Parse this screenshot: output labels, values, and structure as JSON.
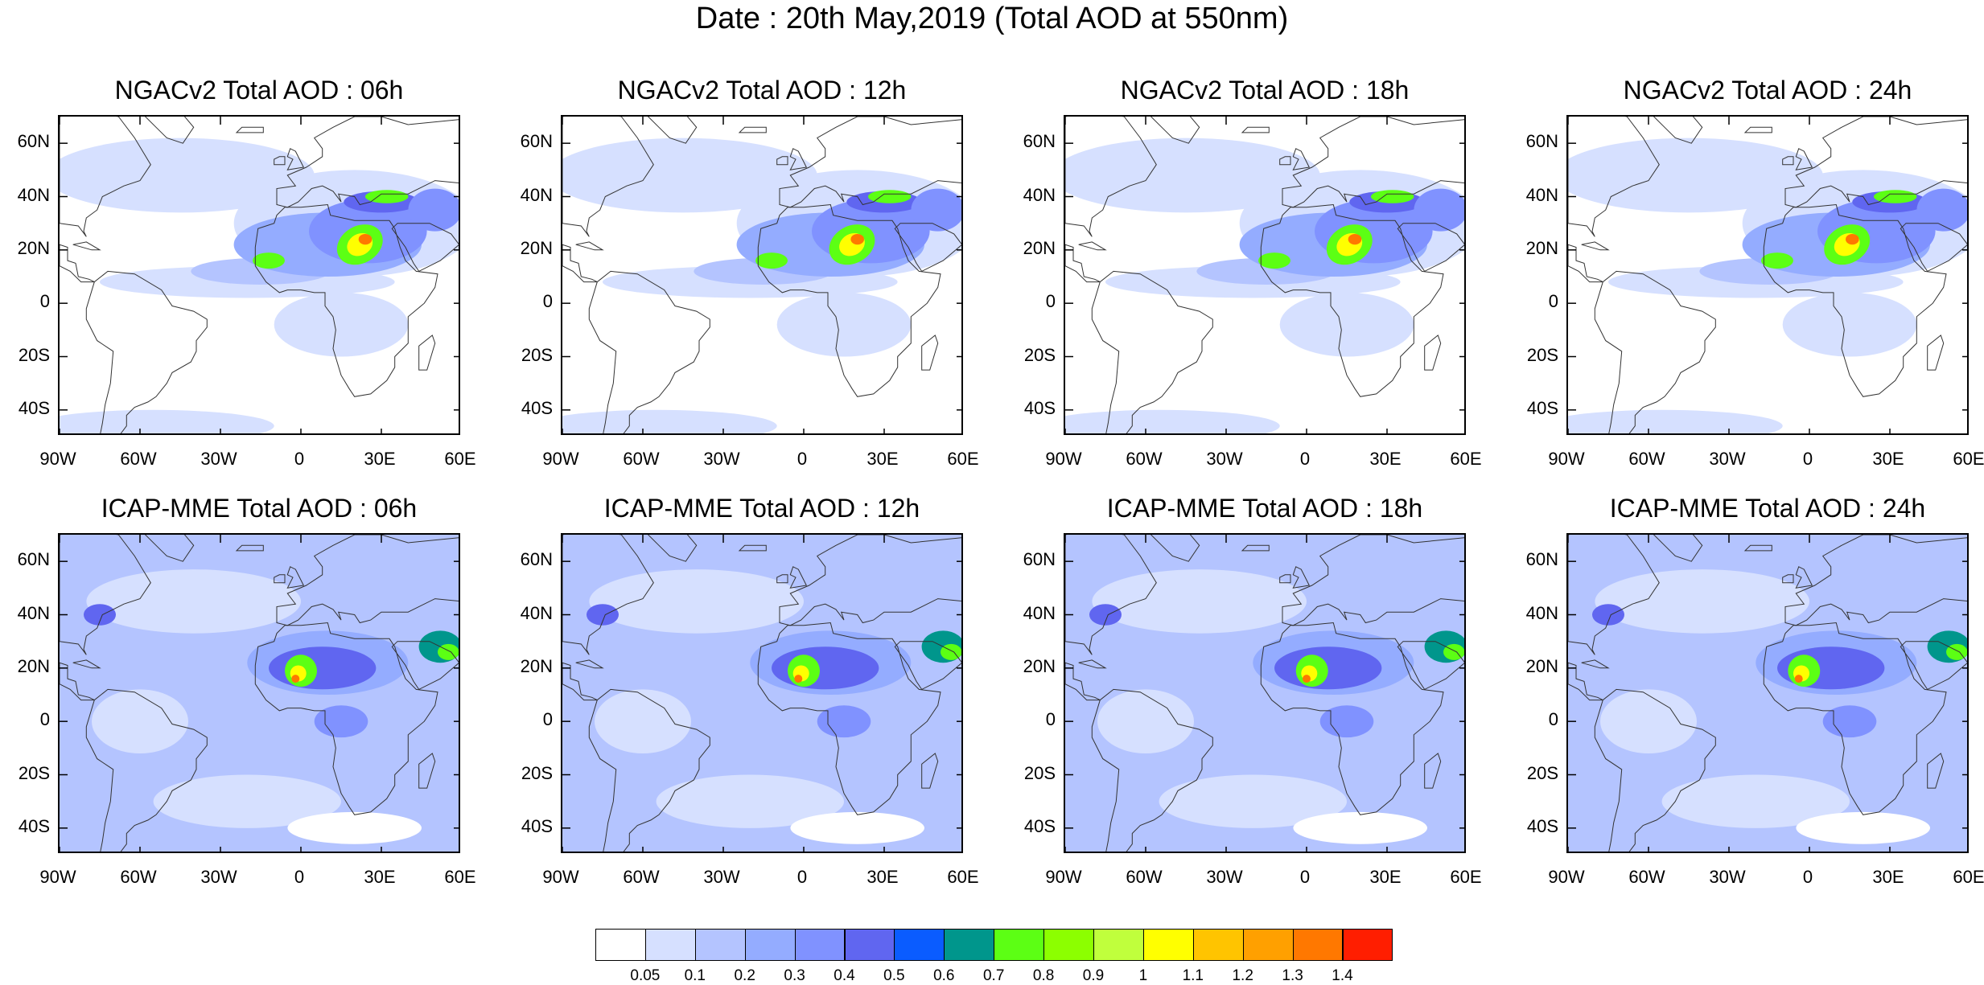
{
  "title": "Date : 20th May,2019 (Total AOD at 550nm)",
  "panels": [
    {
      "id": "ngac-06",
      "title": "NGACv2 Total AOD : 06h",
      "model": "NGACv2",
      "hour": "06h",
      "row": 0,
      "col": 0
    },
    {
      "id": "ngac-12",
      "title": "NGACv2 Total AOD : 12h",
      "model": "NGACv2",
      "hour": "12h",
      "row": 0,
      "col": 1
    },
    {
      "id": "ngac-18",
      "title": "NGACv2 Total AOD : 18h",
      "model": "NGACv2",
      "hour": "18h",
      "row": 0,
      "col": 2
    },
    {
      "id": "ngac-24",
      "title": "NGACv2 Total AOD : 24h",
      "model": "NGACv2",
      "hour": "24h",
      "row": 0,
      "col": 3
    },
    {
      "id": "icap-06",
      "title": "ICAP-MME Total AOD : 06h",
      "model": "ICAP-MME",
      "hour": "06h",
      "row": 1,
      "col": 0
    },
    {
      "id": "icap-12",
      "title": "ICAP-MME Total AOD : 12h",
      "model": "ICAP-MME",
      "hour": "12h",
      "row": 1,
      "col": 1
    },
    {
      "id": "icap-18",
      "title": "ICAP-MME Total AOD : 18h",
      "model": "ICAP-MME",
      "hour": "18h",
      "row": 1,
      "col": 2
    },
    {
      "id": "icap-24",
      "title": "ICAP-MME Total AOD : 24h",
      "model": "ICAP-MME",
      "hour": "24h",
      "row": 1,
      "col": 3
    }
  ],
  "map_extent": {
    "lon_min": -90,
    "lon_max": 60,
    "lat_min": -50,
    "lat_max": 70
  },
  "lat_ticks": [
    {
      "value": 60,
      "label": "60N"
    },
    {
      "value": 40,
      "label": "40N"
    },
    {
      "value": 20,
      "label": "20N"
    },
    {
      "value": 0,
      "label": "0"
    },
    {
      "value": -20,
      "label": "20S"
    },
    {
      "value": -40,
      "label": "40S"
    }
  ],
  "lon_ticks": [
    {
      "value": -90,
      "label": "90W"
    },
    {
      "value": -60,
      "label": "60W"
    },
    {
      "value": -30,
      "label": "30W"
    },
    {
      "value": 0,
      "label": "0"
    },
    {
      "value": 30,
      "label": "30E"
    },
    {
      "value": 60,
      "label": "60E"
    }
  ],
  "colorbar": {
    "colors": [
      "#ffffff",
      "#d6e0ff",
      "#b4c4ff",
      "#94acff",
      "#8092ff",
      "#6066f0",
      "#0a5cff",
      "#00968c",
      "#5cff14",
      "#8cff00",
      "#c0ff3c",
      "#ffff00",
      "#ffc400",
      "#ffa000",
      "#ff7800",
      "#ff1e00"
    ],
    "labels": [
      "0.05",
      "0.1",
      "0.2",
      "0.3",
      "0.4",
      "0.5",
      "0.6",
      "0.7",
      "0.8",
      "0.9",
      "1",
      "1.1",
      "1.2",
      "1.3",
      "1.4"
    ]
  },
  "colors": {
    "land_outline": "#333333",
    "frame": "#000000"
  }
}
